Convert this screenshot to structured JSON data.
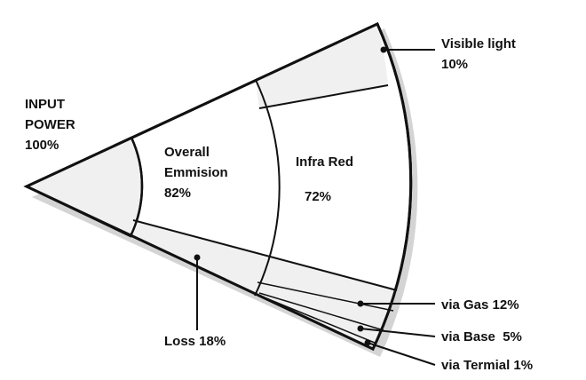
{
  "nodes": [
    {
      "lines": [
        "INPUT",
        "POWER",
        "100%"
      ]
    },
    {
      "lines": [
        "Overall",
        "Emmision",
        "82%"
      ]
    },
    {
      "lines": [
        "Infra Red",
        "72%"
      ]
    },
    {
      "lines": [
        "Visible light",
        "10%"
      ]
    },
    {
      "lines": [
        "Loss 18%"
      ]
    },
    {
      "lines": [
        "via Gas 12%"
      ]
    },
    {
      "lines": [
        "via Base  5%"
      ]
    },
    {
      "lines": [
        "via Termial 1%"
      ]
    }
  ]
}
